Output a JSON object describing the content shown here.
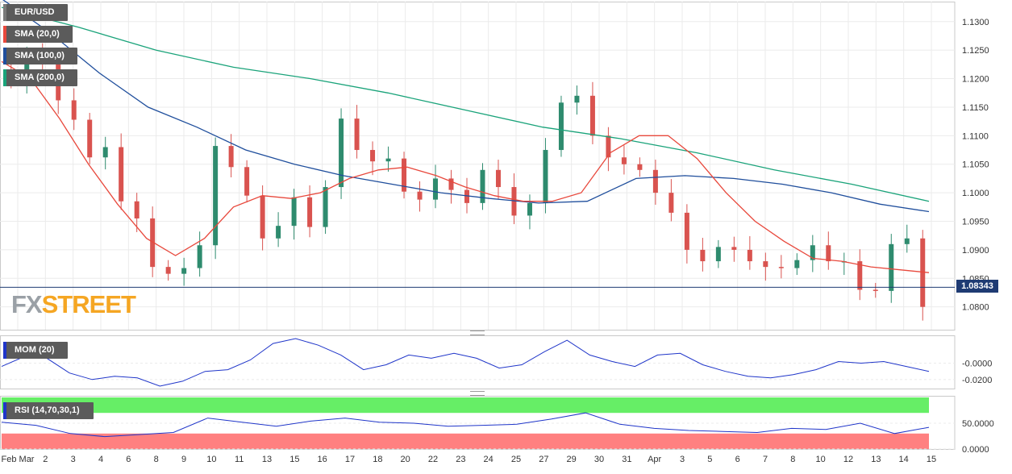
{
  "chart_data": [
    {
      "type": "candlestick",
      "title": "EUR/USD",
      "indicators": [
        {
          "name": "SMA (20,0)",
          "color": "#e8483c"
        },
        {
          "name": "SMA (100,0)",
          "color": "#1f4e9c"
        },
        {
          "name": "SMA (200,0)",
          "color": "#1aa37a"
        }
      ],
      "current_price": "1.08343",
      "ylim": [
        1.076,
        1.1335
      ],
      "yticks": [
        "1.1300",
        "1.1250",
        "1.1200",
        "1.1150",
        "1.1100",
        "1.1050",
        "1.1000",
        "1.0950",
        "1.0900",
        "1.0850",
        "1.0800"
      ],
      "xticks": [
        "Feb Mar",
        "2",
        "3",
        "4",
        "6",
        "8",
        "9",
        "10",
        "11",
        "13",
        "15",
        "16",
        "17",
        "18",
        "20",
        "22",
        "23",
        "24",
        "25",
        "27",
        "29",
        "30",
        "31",
        "Apr",
        "3",
        "5",
        "6",
        "7",
        "8",
        "10",
        "12",
        "13",
        "14",
        "15"
      ],
      "close_series": [
        1.1195,
        1.1238,
        1.1228,
        1.1162,
        1.1128,
        1.1062,
        1.108,
        1.0985,
        1.0955,
        1.087,
        1.0858,
        1.0868,
        1.0908,
        1.1082,
        1.1045,
        1.0995,
        1.092,
        1.0942,
        1.0992,
        1.094,
        1.101,
        1.113,
        1.1075,
        1.1055,
        1.106,
        1.1002,
        1.0988,
        1.1025,
        1.1005,
        1.0982,
        1.104,
        1.101,
        1.096,
        1.0982,
        1.1075,
        1.1158,
        1.117,
        1.11,
        1.1062,
        1.105,
        1.104,
        1.1,
        1.0965,
        1.09,
        1.088,
        1.0905,
        1.09,
        1.088,
        1.087,
        1.0868,
        1.0882,
        1.0908,
        1.088,
        1.088,
        1.083,
        1.0828,
        1.091,
        1.092,
        1.08
      ],
      "sma20_series": [
        1.123,
        1.12,
        1.113,
        1.105,
        1.098,
        1.092,
        1.089,
        1.092,
        1.0975,
        1.0995,
        1.099,
        1.1,
        1.1025,
        1.104,
        1.1045,
        1.103,
        1.101,
        1.0995,
        1.0985,
        1.0985,
        1.1,
        1.107,
        1.11,
        1.11,
        1.106,
        1.1,
        1.095,
        1.0915,
        1.0885,
        1.088,
        1.087,
        1.0865,
        1.086
      ],
      "sma100_series": [
        1.134,
        1.128,
        1.121,
        1.115,
        1.1115,
        1.1075,
        1.105,
        1.103,
        1.1015,
        1.1,
        1.099,
        1.0982,
        1.0985,
        1.1025,
        1.103,
        1.1025,
        1.1015,
        1.1,
        1.098,
        1.0967
      ],
      "sma200_series": [
        1.1325,
        1.129,
        1.125,
        1.122,
        1.12,
        1.1175,
        1.1145,
        1.1115,
        1.1095,
        1.107,
        1.104,
        1.1015,
        1.0985
      ]
    },
    {
      "type": "line",
      "title": "MOM (20)",
      "color": "#1f35c9",
      "yticks": [
        "-0.0000",
        "-0.0200"
      ],
      "values": [
        -0.004,
        0.008,
        0.006,
        -0.012,
        -0.02,
        -0.016,
        -0.018,
        -0.028,
        -0.022,
        -0.01,
        -0.008,
        0.004,
        0.024,
        0.03,
        0.022,
        0.01,
        -0.008,
        -0.002,
        0.01,
        0.006,
        0.012,
        0.006,
        -0.006,
        -0.002,
        0.014,
        0.028,
        0.01,
        0.002,
        -0.004,
        0.01,
        0.012,
        -0.002,
        -0.01,
        -0.016,
        -0.018,
        -0.014,
        -0.008,
        0.002,
        0.0,
        0.002,
        -0.004,
        -0.01
      ]
    },
    {
      "type": "line",
      "title": "RSI (14,70,30,1)",
      "color": "#1f35c9",
      "yticks": [
        "50.0000",
        "0.0000"
      ],
      "overbought_color": "#66ee66",
      "oversold_color": "#ff8080",
      "values": [
        52,
        46,
        30,
        24,
        28,
        32,
        60,
        52,
        44,
        54,
        60,
        52,
        50,
        44,
        46,
        48,
        58,
        70,
        48,
        40,
        36,
        34,
        32,
        40,
        38,
        50,
        30,
        42
      ]
    }
  ],
  "logo": {
    "fx": "FX",
    "street": "STREET"
  }
}
